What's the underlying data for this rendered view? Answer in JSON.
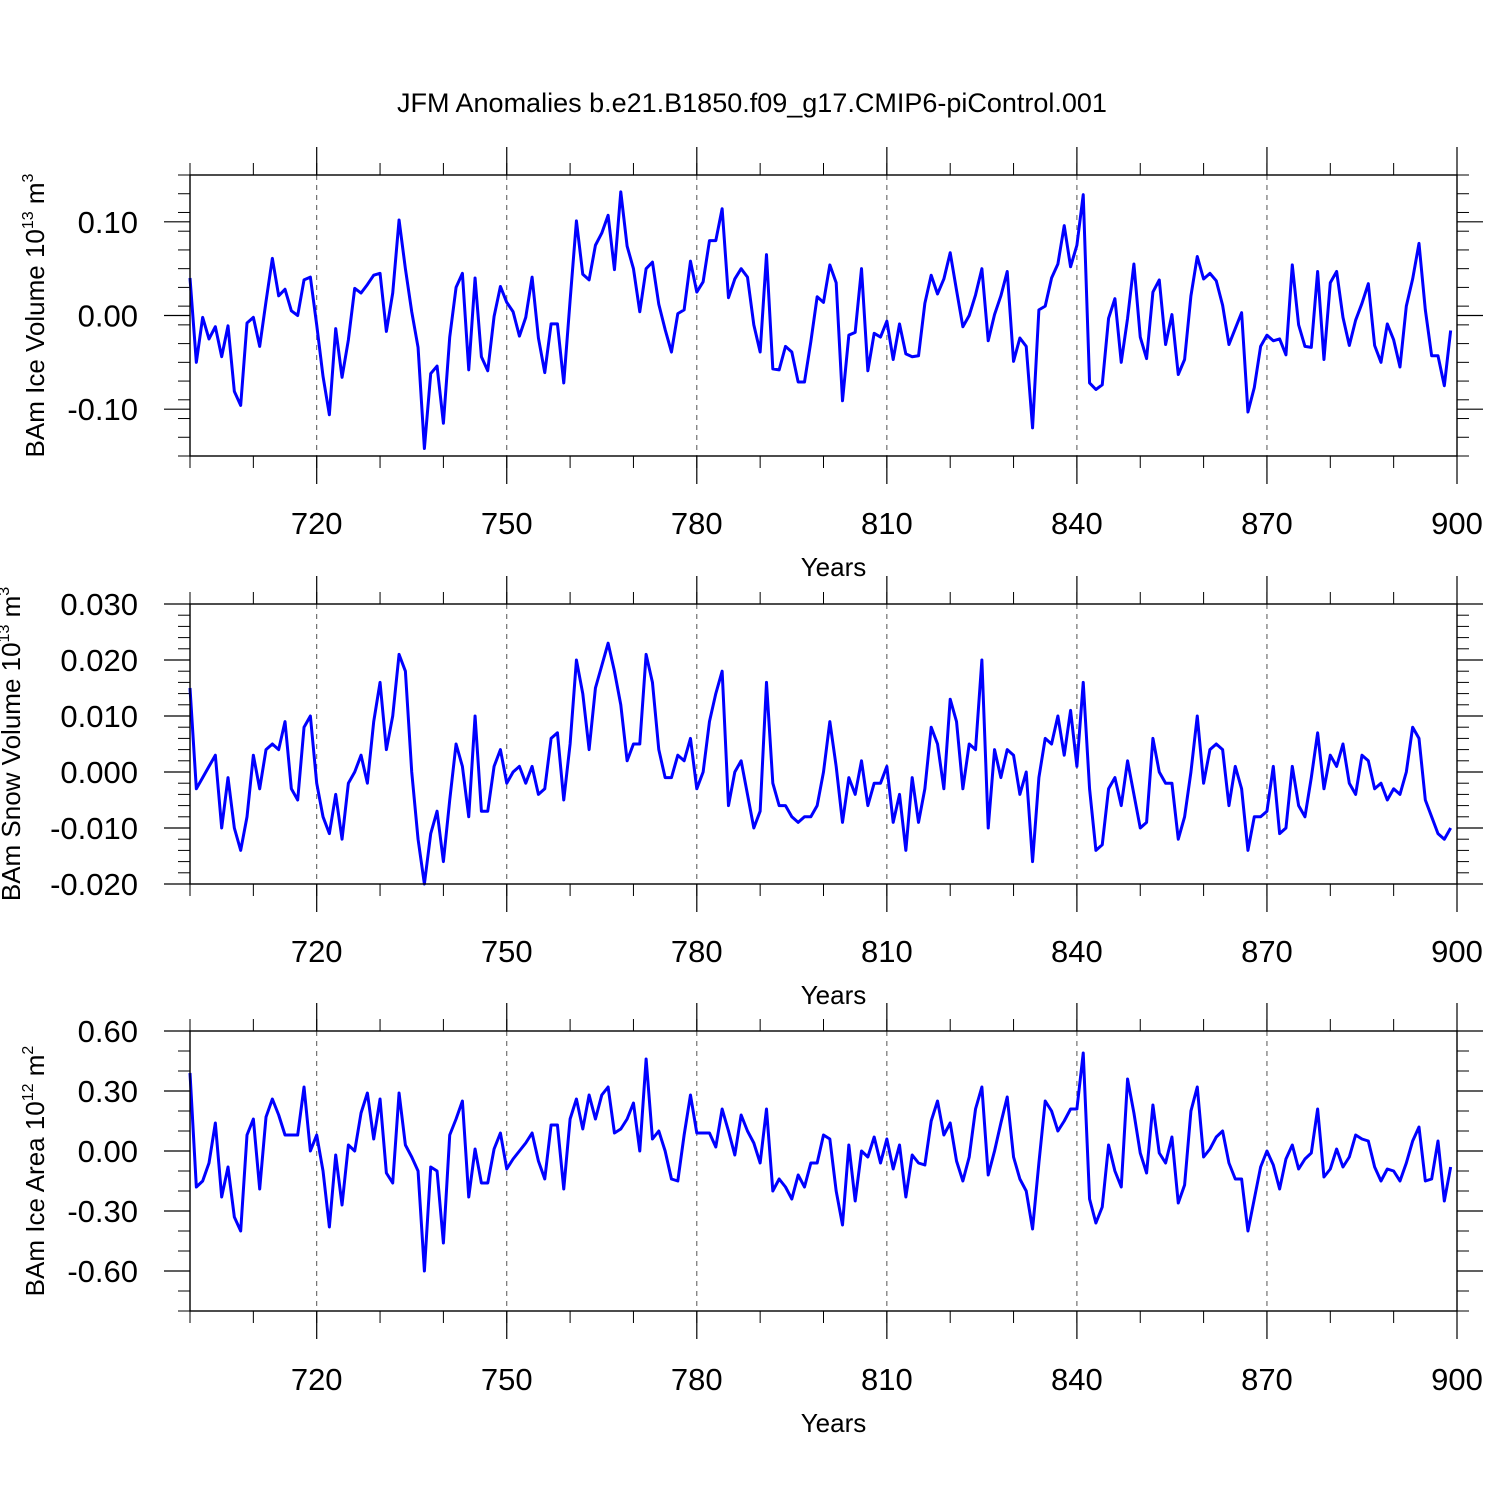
{
  "title": "JFM Anomalies b.e21.B1850.f09_g17.CMIP6-piControl.001",
  "series_color": "#0000ff",
  "chart_data": [
    {
      "type": "line",
      "ylabel_main": "BAm Ice Volume 10",
      "ylabel_exp": "13",
      "ylabel_unit": " m",
      "ylabel_unit_exp": "3",
      "xlabel": "Years",
      "xlim": [
        700,
        900
      ],
      "ylim": [
        -0.15,
        0.15
      ],
      "xticks": [
        720,
        750,
        780,
        810,
        840,
        870,
        900
      ],
      "xtick_labels": [
        "720",
        "750",
        "780",
        "810",
        "840",
        "870",
        "900"
      ],
      "yticks": [
        -0.1,
        0.0,
        0.1
      ],
      "ytick_labels": [
        "-0.10",
        "0.00",
        "0.10"
      ],
      "yminor_step": 0.02,
      "values": [
        0.04,
        -0.05,
        -0.002,
        -0.025,
        -0.012,
        -0.044,
        -0.011,
        -0.081,
        -0.096,
        -0.008,
        -0.002,
        -0.033,
        0.015,
        0.061,
        0.021,
        0.028,
        0.005,
        0.0,
        0.038,
        0.041,
        -0.01,
        -0.065,
        -0.106,
        -0.014,
        -0.066,
        -0.026,
        0.029,
        0.024,
        0.033,
        0.043,
        0.045,
        -0.017,
        0.024,
        0.102,
        0.05,
        0.004,
        -0.034,
        -0.142,
        -0.062,
        -0.054,
        -0.115,
        -0.023,
        0.03,
        0.045,
        -0.058,
        0.04,
        -0.044,
        -0.059,
        -0.001,
        0.031,
        0.014,
        0.004,
        -0.022,
        -0.002,
        0.041,
        -0.024,
        -0.061,
        -0.009,
        -0.009,
        -0.072,
        0.016,
        0.101,
        0.044,
        0.038,
        0.075,
        0.088,
        0.107,
        0.049,
        0.132,
        0.074,
        0.05,
        0.004,
        0.05,
        0.057,
        0.012,
        -0.015,
        -0.039,
        0.002,
        0.006,
        0.058,
        0.025,
        0.036,
        0.08,
        0.08,
        0.114,
        0.019,
        0.039,
        0.05,
        0.041,
        -0.01,
        -0.039,
        0.065,
        -0.057,
        -0.058,
        -0.033,
        -0.039,
        -0.071,
        -0.071,
        -0.028,
        0.02,
        0.014,
        0.054,
        0.035,
        -0.091,
        -0.021,
        -0.018,
        0.05,
        -0.059,
        -0.019,
        -0.023,
        -0.006,
        -0.047,
        -0.009,
        -0.041,
        -0.044,
        -0.043,
        0.013,
        0.043,
        0.023,
        0.039,
        0.067,
        0.027,
        -0.012,
        0.0,
        0.022,
        0.05,
        -0.027,
        0.001,
        0.021,
        0.047,
        -0.049,
        -0.024,
        -0.033,
        -0.12,
        0.006,
        0.01,
        0.04,
        0.055,
        0.096,
        0.052,
        0.075,
        0.129,
        -0.072,
        -0.079,
        -0.074,
        -0.003,
        0.018,
        -0.05,
        -0.003,
        0.055,
        -0.023,
        -0.046,
        0.025,
        0.038,
        -0.031,
        0.001,
        -0.063,
        -0.047,
        0.021,
        0.063,
        0.039,
        0.045,
        0.037,
        0.011,
        -0.031,
        -0.014,
        0.003,
        -0.103,
        -0.077,
        -0.033,
        -0.021,
        -0.027,
        -0.025,
        -0.042,
        0.054,
        -0.01,
        -0.033,
        -0.034,
        0.047,
        -0.047,
        0.035,
        0.047,
        -0.002,
        -0.032,
        -0.005,
        0.013,
        0.034,
        -0.032,
        -0.05,
        -0.009,
        -0.026,
        -0.055,
        0.01,
        0.039,
        0.077,
        0.006,
        -0.043,
        -0.043,
        -0.075,
        -0.016
      ]
    },
    {
      "type": "line",
      "ylabel_main": "BAm Snow Volume 10",
      "ylabel_exp": "13",
      "ylabel_unit": " m",
      "ylabel_unit_exp": "3",
      "xlabel": "Years",
      "xlim": [
        700,
        900
      ],
      "ylim": [
        -0.02,
        0.03
      ],
      "xticks": [
        720,
        750,
        780,
        810,
        840,
        870,
        900
      ],
      "xtick_labels": [
        "720",
        "750",
        "780",
        "810",
        "840",
        "870",
        "900"
      ],
      "yticks": [
        -0.02,
        -0.01,
        0.0,
        0.01,
        0.02,
        0.03
      ],
      "ytick_labels": [
        "-0.020",
        "-0.010",
        "0.000",
        "0.010",
        "0.020",
        "0.030"
      ],
      "yminor_step": 0.002,
      "values": [
        0.015,
        -0.003,
        -0.001,
        0.001,
        0.003,
        -0.01,
        -0.001,
        -0.01,
        -0.014,
        -0.008,
        0.003,
        -0.003,
        0.004,
        0.005,
        0.004,
        0.009,
        -0.003,
        -0.005,
        0.008,
        0.01,
        -0.002,
        -0.008,
        -0.011,
        -0.004,
        -0.012,
        -0.002,
        0.0,
        0.003,
        -0.002,
        0.009,
        0.016,
        0.004,
        0.01,
        0.021,
        0.018,
        0.0,
        -0.012,
        -0.02,
        -0.011,
        -0.007,
        -0.016,
        -0.005,
        0.005,
        0.001,
        -0.008,
        0.01,
        -0.007,
        -0.007,
        0.001,
        0.004,
        -0.002,
        0.0,
        0.001,
        -0.002,
        0.001,
        -0.004,
        -0.003,
        0.006,
        0.007,
        -0.005,
        0.005,
        0.02,
        0.014,
        0.004,
        0.015,
        0.019,
        0.023,
        0.018,
        0.012,
        0.002,
        0.005,
        0.005,
        0.021,
        0.016,
        0.004,
        -0.001,
        -0.001,
        0.003,
        0.002,
        0.006,
        -0.003,
        0.0,
        0.009,
        0.014,
        0.018,
        -0.006,
        0.0,
        0.002,
        -0.004,
        -0.01,
        -0.007,
        0.016,
        -0.002,
        -0.006,
        -0.006,
        -0.008,
        -0.009,
        -0.008,
        -0.008,
        -0.006,
        0.0,
        0.009,
        0.001,
        -0.009,
        -0.001,
        -0.004,
        0.002,
        -0.006,
        -0.002,
        -0.002,
        0.001,
        -0.009,
        -0.004,
        -0.014,
        -0.001,
        -0.009,
        -0.003,
        0.008,
        0.005,
        -0.003,
        0.013,
        0.009,
        -0.003,
        0.005,
        0.004,
        0.02,
        -0.01,
        0.004,
        -0.001,
        0.004,
        0.003,
        -0.004,
        0.0,
        -0.016,
        -0.001,
        0.006,
        0.005,
        0.01,
        0.003,
        0.011,
        0.001,
        0.016,
        -0.003,
        -0.014,
        -0.013,
        -0.003,
        -0.001,
        -0.006,
        0.002,
        -0.004,
        -0.01,
        -0.009,
        0.006,
        0.0,
        -0.002,
        -0.002,
        -0.012,
        -0.008,
        0.0,
        0.01,
        -0.002,
        0.004,
        0.005,
        0.004,
        -0.006,
        0.001,
        -0.003,
        -0.014,
        -0.008,
        -0.008,
        -0.007,
        0.001,
        -0.011,
        -0.01,
        0.001,
        -0.006,
        -0.008,
        -0.001,
        0.007,
        -0.003,
        0.003,
        0.001,
        0.005,
        -0.002,
        -0.004,
        0.003,
        0.002,
        -0.003,
        -0.002,
        -0.005,
        -0.003,
        -0.004,
        0.0,
        0.008,
        0.006,
        -0.005,
        -0.008,
        -0.011,
        -0.012,
        -0.01
      ]
    },
    {
      "type": "line",
      "ylabel_main": "BAm Ice Area 10",
      "ylabel_exp": "12",
      "ylabel_unit": " m",
      "ylabel_unit_exp": "2",
      "xlabel": "Years",
      "xlim": [
        700,
        900
      ],
      "ylim": [
        -0.8,
        0.6
      ],
      "xticks": [
        720,
        750,
        780,
        810,
        840,
        870,
        900
      ],
      "xtick_labels": [
        "720",
        "750",
        "780",
        "810",
        "840",
        "870",
        "900"
      ],
      "yticks": [
        -0.6,
        -0.3,
        0.0,
        0.3,
        0.6
      ],
      "ytick_labels": [
        "-0.60",
        "-0.30",
        "0.00",
        "0.30",
        "0.60"
      ],
      "yminor_step": 0.1,
      "values": [
        0.39,
        -0.18,
        -0.15,
        -0.06,
        0.14,
        -0.23,
        -0.08,
        -0.33,
        -0.4,
        0.08,
        0.16,
        -0.19,
        0.17,
        0.26,
        0.18,
        0.08,
        0.08,
        0.08,
        0.32,
        0.0,
        0.08,
        -0.1,
        -0.38,
        -0.02,
        -0.27,
        0.03,
        0.0,
        0.19,
        0.29,
        0.06,
        0.26,
        -0.11,
        -0.16,
        0.29,
        0.03,
        -0.03,
        -0.1,
        -0.6,
        -0.08,
        -0.1,
        -0.46,
        0.08,
        0.16,
        0.25,
        -0.23,
        0.01,
        -0.16,
        -0.16,
        0.01,
        0.09,
        -0.09,
        -0.04,
        0.0,
        0.04,
        0.09,
        -0.05,
        -0.14,
        0.13,
        0.13,
        -0.19,
        0.16,
        0.26,
        0.11,
        0.28,
        0.16,
        0.28,
        0.32,
        0.09,
        0.11,
        0.16,
        0.24,
        0.0,
        0.46,
        0.06,
        0.1,
        0.0,
        -0.14,
        -0.15,
        0.08,
        0.28,
        0.09,
        0.09,
        0.09,
        0.02,
        0.21,
        0.1,
        -0.02,
        0.18,
        0.1,
        0.04,
        -0.06,
        0.21,
        -0.2,
        -0.14,
        -0.18,
        -0.24,
        -0.12,
        -0.18,
        -0.06,
        -0.06,
        0.08,
        0.06,
        -0.2,
        -0.37,
        0.03,
        -0.25,
        0.0,
        -0.03,
        0.07,
        -0.06,
        0.06,
        -0.09,
        0.03,
        -0.23,
        -0.02,
        -0.06,
        -0.07,
        0.15,
        0.25,
        0.08,
        0.14,
        -0.05,
        -0.15,
        -0.03,
        0.21,
        0.32,
        -0.12,
        0.0,
        0.14,
        0.27,
        -0.03,
        -0.14,
        -0.2,
        -0.39,
        -0.06,
        0.25,
        0.2,
        0.1,
        0.15,
        0.21,
        0.21,
        0.49,
        -0.24,
        -0.36,
        -0.28,
        0.03,
        -0.1,
        -0.18,
        0.36,
        0.19,
        -0.01,
        -0.11,
        0.23,
        -0.01,
        -0.06,
        0.07,
        -0.26,
        -0.17,
        0.2,
        0.32,
        -0.03,
        0.01,
        0.07,
        0.1,
        -0.06,
        -0.14,
        -0.14,
        -0.4,
        -0.24,
        -0.08,
        0.0,
        -0.07,
        -0.19,
        -0.04,
        0.03,
        -0.09,
        -0.04,
        -0.01,
        0.21,
        -0.13,
        -0.09,
        0.01,
        -0.08,
        -0.03,
        0.08,
        0.06,
        0.05,
        -0.08,
        -0.15,
        -0.09,
        -0.1,
        -0.15,
        -0.06,
        0.05,
        0.12,
        -0.15,
        -0.14,
        0.05,
        -0.25,
        -0.08
      ]
    }
  ]
}
